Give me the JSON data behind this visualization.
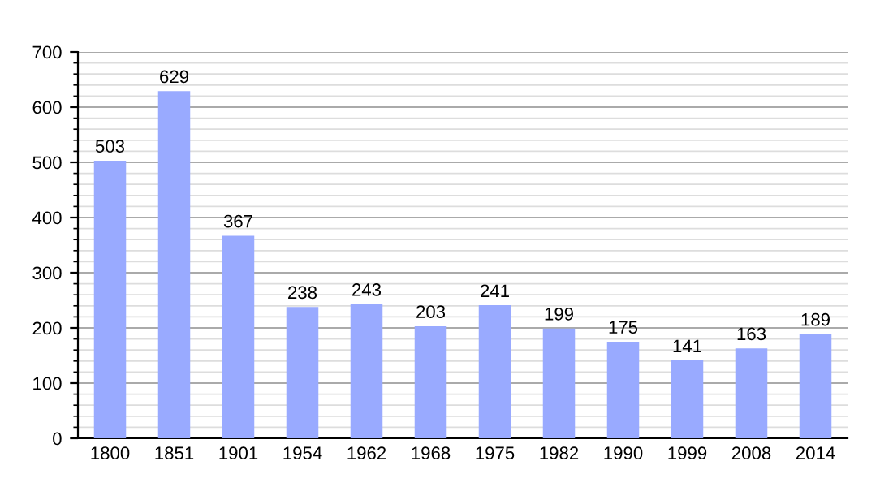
{
  "chart_data": {
    "type": "bar",
    "categories": [
      "1800",
      "1851",
      "1901",
      "1954",
      "1962",
      "1968",
      "1975",
      "1982",
      "1990",
      "1999",
      "2008",
      "2014"
    ],
    "values": [
      503,
      629,
      367,
      238,
      243,
      203,
      241,
      199,
      175,
      141,
      163,
      189
    ],
    "color": "#99aaff",
    "data_labels": true,
    "ylim": [
      0,
      700
    ],
    "yticks": [
      0,
      {
        "value": 20,
        "label": null
      },
      {
        "value": 40,
        "label": null
      },
      {
        "value": 60,
        "label": null
      },
      {
        "value": 80,
        "label": null
      },
      100,
      {
        "value": 120,
        "label": null
      },
      {
        "value": 140,
        "label": null
      },
      {
        "value": 160,
        "label": null
      },
      {
        "value": 180,
        "label": null
      },
      200,
      {
        "value": 220,
        "label": null
      },
      {
        "value": 240,
        "label": null
      },
      {
        "value": 260,
        "label": null
      },
      {
        "value": 280,
        "label": null
      },
      300,
      {
        "value": 320,
        "label": null
      },
      {
        "value": 340,
        "label": null
      },
      {
        "value": 360,
        "label": null
      },
      {
        "value": 380,
        "label": null
      },
      400,
      {
        "value": 420,
        "label": null
      },
      {
        "value": 440,
        "label": null
      },
      {
        "value": 460,
        "label": null
      },
      {
        "value": 480,
        "label": null
      },
      500,
      {
        "value": 520,
        "label": null
      },
      {
        "value": 540,
        "label": null
      },
      {
        "value": 560,
        "label": null
      },
      {
        "value": 580,
        "label": null
      },
      600,
      {
        "value": 620,
        "label": null
      },
      {
        "value": 640,
        "label": null
      },
      {
        "value": 660,
        "label": null
      },
      {
        "value": 680,
        "label": null
      },
      700
    ],
    "grid": "y"
  }
}
